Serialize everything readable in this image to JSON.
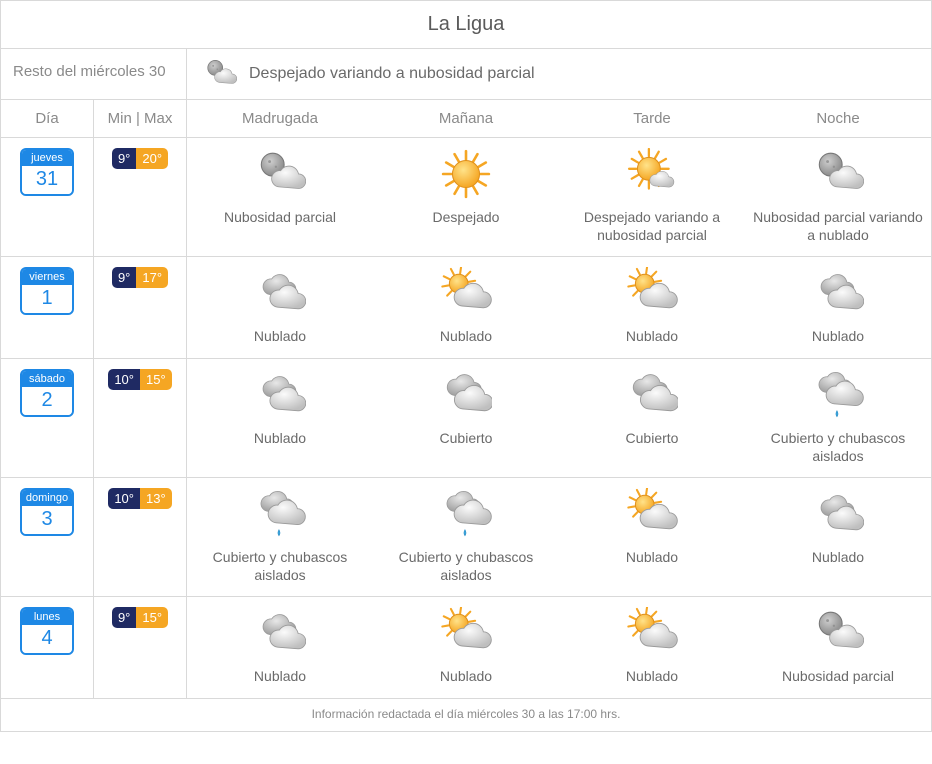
{
  "location": "La Ligua",
  "current": {
    "label": "Resto del miércoles 30",
    "summary": "Despejado variando a nubosidad parcial",
    "icon": "night-partly-cloudy"
  },
  "headers": {
    "dia": "Día",
    "minmax": "Min | Max",
    "periods": [
      "Madrugada",
      "Mañana",
      "Tarde",
      "Noche"
    ]
  },
  "days": [
    {
      "dow": "jueves",
      "num": "31",
      "min": "9°",
      "max": "20°",
      "periods": [
        {
          "icon": "night-partly-cloudy",
          "label": "Nubosidad parcial"
        },
        {
          "icon": "sunny",
          "label": "Despejado"
        },
        {
          "icon": "sun-small-cloud",
          "label": "Despejado variando a nubosidad parcial"
        },
        {
          "icon": "night-partly-cloudy",
          "label": "Nubosidad parcial variando a nublado"
        }
      ]
    },
    {
      "dow": "viernes",
      "num": "1",
      "min": "9°",
      "max": "17°",
      "periods": [
        {
          "icon": "cloudy",
          "label": "Nublado"
        },
        {
          "icon": "mostly-cloudy-day",
          "label": "Nublado"
        },
        {
          "icon": "mostly-cloudy-day",
          "label": "Nublado"
        },
        {
          "icon": "cloudy",
          "label": "Nublado"
        }
      ]
    },
    {
      "dow": "sábado",
      "num": "2",
      "min": "10°",
      "max": "15°",
      "periods": [
        {
          "icon": "cloudy",
          "label": "Nublado"
        },
        {
          "icon": "overcast",
          "label": "Cubierto"
        },
        {
          "icon": "overcast",
          "label": "Cubierto"
        },
        {
          "icon": "showers",
          "label": "Cubierto y chubascos aislados"
        }
      ]
    },
    {
      "dow": "domingo",
      "num": "3",
      "min": "10°",
      "max": "13°",
      "periods": [
        {
          "icon": "showers",
          "label": "Cubierto y chubascos aislados"
        },
        {
          "icon": "showers",
          "label": "Cubierto y chubascos aislados"
        },
        {
          "icon": "mostly-cloudy-day",
          "label": "Nublado"
        },
        {
          "icon": "cloudy",
          "label": "Nublado"
        }
      ]
    },
    {
      "dow": "lunes",
      "num": "4",
      "min": "9°",
      "max": "15°",
      "periods": [
        {
          "icon": "cloudy",
          "label": "Nublado"
        },
        {
          "icon": "mostly-cloudy-day",
          "label": "Nublado"
        },
        {
          "icon": "mostly-cloudy-day",
          "label": "Nublado"
        },
        {
          "icon": "night-partly-cloudy",
          "label": "Nubosidad parcial"
        }
      ]
    }
  ],
  "footer": "Información redactada el día miércoles 30 a las 17:00 hrs.",
  "colors": {
    "border": "#d9d9d9",
    "text": "#6a6a6a",
    "chip_blue": "#1e88e5",
    "min_bg": "#1f2a63",
    "max_bg": "#f5a623"
  }
}
